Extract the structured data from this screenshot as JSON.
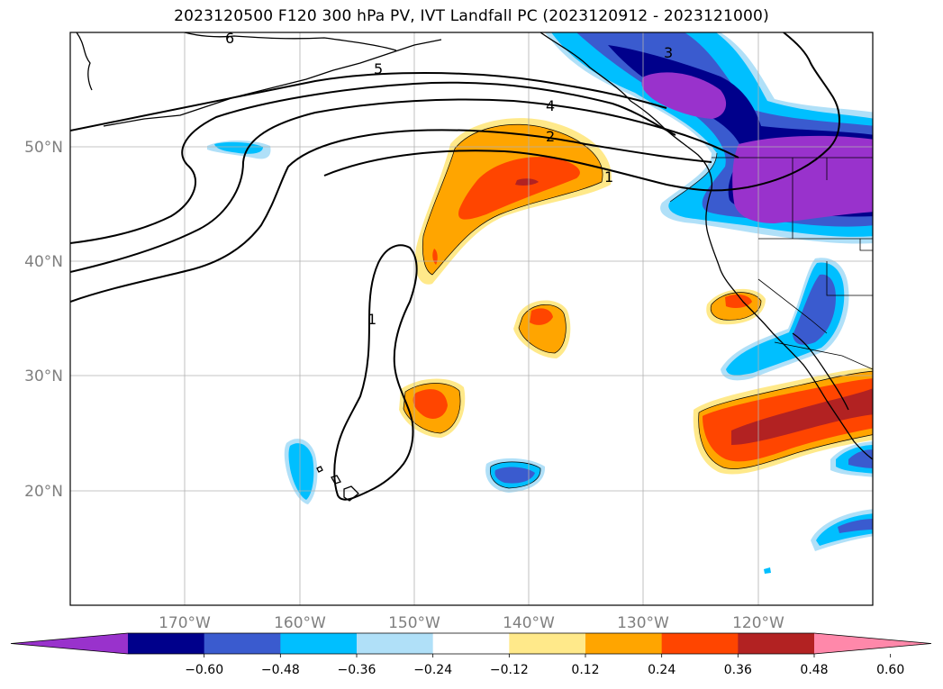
{
  "title": "2023120500 F120 300 hPa PV, IVT Landfall PC (2023120912 - 2023121000)",
  "map": {
    "lon_range": [
      -180,
      -110
    ],
    "lat_range": [
      10,
      60
    ],
    "lon_ticks": [
      "170°W",
      "160°W",
      "150°W",
      "140°W",
      "130°W",
      "120°W"
    ],
    "lat_ticks": [
      "50°N",
      "40°N",
      "30°N",
      "20°N"
    ],
    "grid": true,
    "contour_labels": [
      "6",
      "5",
      "4",
      "3",
      "2",
      "1",
      "1"
    ]
  },
  "colorbar": {
    "ticks": [
      "−0.60",
      "−0.48",
      "−0.36",
      "−0.24",
      "−0.12",
      "0.12",
      "0.24",
      "0.36",
      "0.48",
      "0.60"
    ],
    "colors": [
      "#9932cc",
      "#00008b",
      "#3a5bcf",
      "#00bfff",
      "#b0e0f8",
      "#ffffff",
      "#ffe98a",
      "#ffa500",
      "#ff4500",
      "#b22222",
      "#ff88aa"
    ]
  }
}
